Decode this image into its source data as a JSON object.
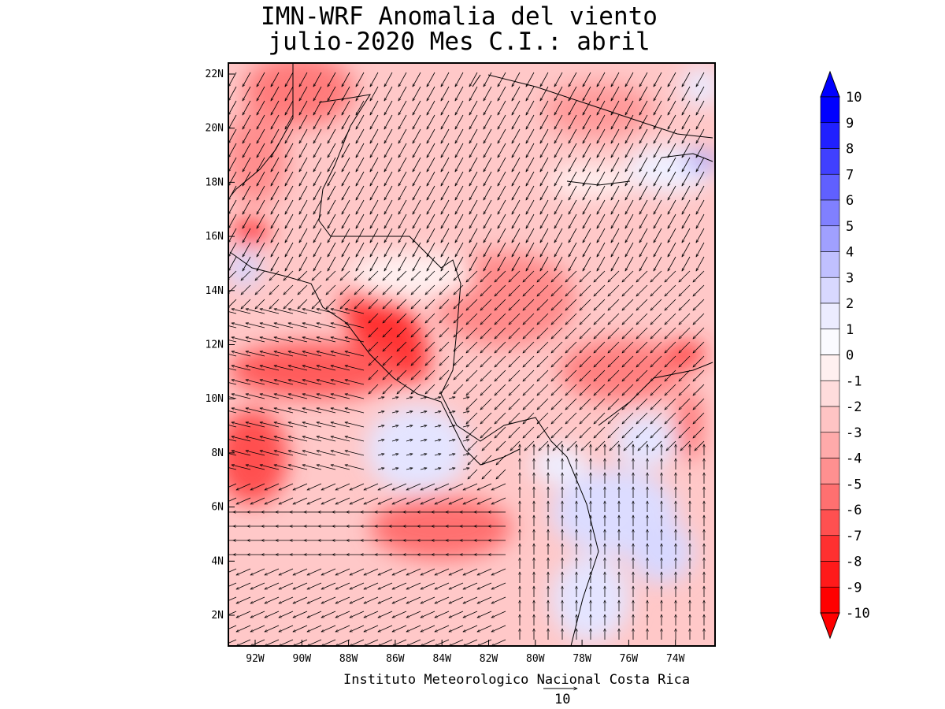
{
  "title_line1": "IMN-WRF Anomalia del viento",
  "title_line2": "julio-2020 Mes C.I.: abril",
  "credit": "Instituto Meteorologico Nacional Costa Rica",
  "reference_vector": {
    "value": "10"
  },
  "map": {
    "region": "Central America / Caribbean",
    "lon_range": [
      -93.5,
      -72.5
    ],
    "lat_range": [
      1,
      22.5
    ],
    "lon_ticks": [
      "92W",
      "90W",
      "88W",
      "86W",
      "84W",
      "82W",
      "80W",
      "78W",
      "76W",
      "74W"
    ],
    "lat_ticks": [
      "22N",
      "20N",
      "18N",
      "16N",
      "14N",
      "12N",
      "10N",
      "8N",
      "6N",
      "4N",
      "2N"
    ],
    "field": "wind speed anomaly (shaded) with wind anomaly vectors",
    "notable_features": [
      "strong negative anomaly (red) over Gulf of Honduras near 16N 93W",
      "strong negative anomaly along Pacific coast of Nicaragua/Costa Rica 10-14N",
      "negative anomaly over central Caribbean, vectors pointing southwest",
      "positive anomaly (blue) patches off Panama/Colombia and near Jamaica"
    ]
  },
  "colorbar": {
    "labels": [
      "10",
      "9",
      "8",
      "7",
      "6",
      "5",
      "4",
      "3",
      "2",
      "1",
      "0",
      "-1",
      "-2",
      "-3",
      "-4",
      "-5",
      "-6",
      "-7",
      "-8",
      "-9",
      "-10"
    ],
    "colors": [
      "#0000ff",
      "#2020ff",
      "#4040ff",
      "#6060ff",
      "#8080ff",
      "#a0a0ff",
      "#c0c0ff",
      "#d8d8ff",
      "#ececff",
      "#fafaff",
      "#fff0f0",
      "#ffdcdc",
      "#ffc4c4",
      "#ffaaaa",
      "#ff9090",
      "#ff7070",
      "#ff5050",
      "#ff3030",
      "#ff1a1a",
      "#ff0000"
    ]
  }
}
